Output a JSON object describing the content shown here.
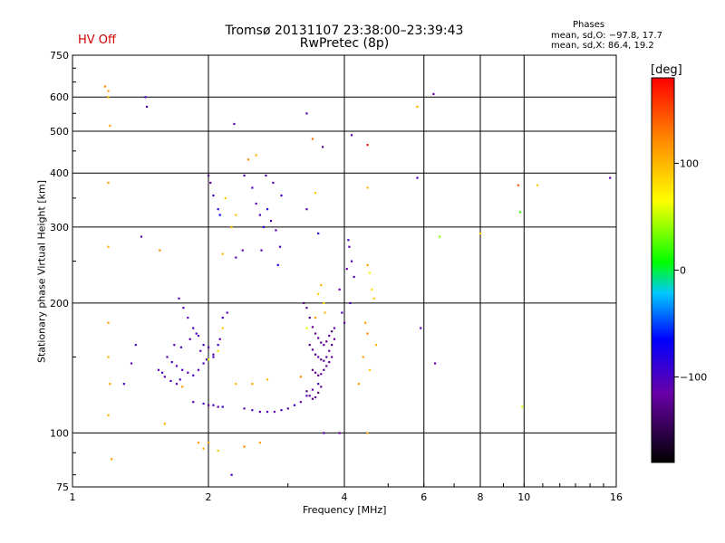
{
  "status_label": "HV Off",
  "title_line1": "Tromsø 20131107 23:38:00–23:39:43",
  "title_line2": "RwPretec (8p)",
  "phases_header": "Phases",
  "stats_line1": "mean, sd,O: −97.8, 17.7",
  "stats_line2": "mean, sd,X:  86.4, 19.2",
  "colors": {
    "status": "#d00000",
    "grid": "#000000"
  },
  "chart_data": {
    "type": "scatter",
    "xlabel": "Frequency [MHz]",
    "ylabel": "Stationary phase Virtual Height [km]",
    "xscale": "log",
    "yscale": "log",
    "xlim": [
      1,
      16
    ],
    "ylim": [
      75,
      750
    ],
    "xticks": [
      1,
      2,
      4,
      6,
      8,
      10,
      16
    ],
    "yticks": [
      75,
      100,
      200,
      300,
      400,
      500,
      600,
      750
    ],
    "grid": true,
    "colorbar": {
      "label": "[deg]",
      "range": [
        -180,
        180
      ],
      "ticks": [
        100,
        0,
        -100
      ]
    },
    "points": [
      [
        1.18,
        635,
        120
      ],
      [
        1.2,
        620,
        110
      ],
      [
        1.2,
        600,
        100
      ],
      [
        1.21,
        515,
        110
      ],
      [
        1.45,
        600,
        -100
      ],
      [
        1.46,
        570,
        -100
      ],
      [
        2.28,
        520,
        -110
      ],
      [
        3.3,
        550,
        -110
      ],
      [
        3.4,
        480,
        130
      ],
      [
        3.58,
        460,
        -120
      ],
      [
        4.15,
        490,
        -110
      ],
      [
        4.5,
        465,
        170
      ],
      [
        4.5,
        370,
        100
      ],
      [
        5.8,
        570,
        100
      ],
      [
        6.3,
        610,
        -110
      ],
      [
        9.7,
        375,
        140
      ],
      [
        10.7,
        375,
        90
      ],
      [
        15.5,
        390,
        -110
      ],
      [
        1.2,
        380,
        110
      ],
      [
        1.2,
        270,
        100
      ],
      [
        1.42,
        285,
        -110
      ],
      [
        1.56,
        265,
        120
      ],
      [
        1.38,
        160,
        -100
      ],
      [
        1.35,
        145,
        -110
      ],
      [
        1.2,
        180,
        110
      ],
      [
        1.2,
        150,
        100
      ],
      [
        1.21,
        130,
        110
      ],
      [
        1.2,
        110,
        100
      ],
      [
        1.22,
        87,
        110
      ],
      [
        1.3,
        130,
        -100
      ],
      [
        2.0,
        395,
        -120
      ],
      [
        2.02,
        380,
        -110
      ],
      [
        2.05,
        355,
        -100
      ],
      [
        2.1,
        330,
        -90
      ],
      [
        2.12,
        320,
        -70
      ],
      [
        2.18,
        350,
        90
      ],
      [
        2.5,
        370,
        -100
      ],
      [
        2.55,
        340,
        -110
      ],
      [
        2.6,
        320,
        -100
      ],
      [
        2.65,
        300,
        -90
      ],
      [
        2.7,
        330,
        -80
      ],
      [
        2.75,
        310,
        -100
      ],
      [
        2.82,
        295,
        -110
      ],
      [
        2.9,
        355,
        -100
      ],
      [
        2.78,
        380,
        -110
      ],
      [
        2.68,
        395,
        -100
      ],
      [
        2.45,
        430,
        120
      ],
      [
        2.55,
        440,
        100
      ],
      [
        2.88,
        270,
        -100
      ],
      [
        2.85,
        245,
        -90
      ],
      [
        2.62,
        265,
        -110
      ],
      [
        3.3,
        330,
        -110
      ],
      [
        3.45,
        360,
        90
      ],
      [
        3.5,
        290,
        -90
      ],
      [
        2.38,
        265,
        -110
      ],
      [
        2.25,
        300,
        100
      ],
      [
        2.3,
        320,
        90
      ],
      [
        2.15,
        260,
        100
      ],
      [
        2.4,
        395,
        -100
      ],
      [
        2.3,
        255,
        -110
      ],
      [
        1.72,
        205,
        -110
      ],
      [
        1.76,
        195,
        -100
      ],
      [
        1.8,
        185,
        -110
      ],
      [
        1.85,
        175,
        -100
      ],
      [
        1.9,
        168,
        -110
      ],
      [
        1.95,
        160,
        -100
      ],
      [
        2.0,
        158,
        -110
      ],
      [
        2.05,
        150,
        -100
      ],
      [
        2.1,
        155,
        80
      ],
      [
        2.12,
        165,
        -110
      ],
      [
        2.15,
        185,
        -100
      ],
      [
        2.2,
        190,
        -110
      ],
      [
        1.62,
        150,
        -110
      ],
      [
        1.66,
        146,
        -100
      ],
      [
        1.7,
        143,
        -110
      ],
      [
        1.75,
        140,
        -100
      ],
      [
        1.8,
        138,
        -110
      ],
      [
        1.85,
        136,
        -100
      ],
      [
        1.9,
        140,
        -110
      ],
      [
        1.95,
        145,
        -100
      ],
      [
        2.0,
        148,
        60
      ],
      [
        2.05,
        152,
        -110
      ],
      [
        2.1,
        160,
        -100
      ],
      [
        2.15,
        175,
        90
      ],
      [
        1.68,
        160,
        -110
      ],
      [
        1.74,
        158,
        -100
      ],
      [
        1.82,
        165,
        -110
      ],
      [
        1.88,
        170,
        -100
      ],
      [
        1.92,
        155,
        -110
      ],
      [
        1.98,
        148,
        -100
      ],
      [
        1.55,
        140,
        -110
      ],
      [
        1.58,
        138,
        -100
      ],
      [
        1.6,
        135,
        -110
      ],
      [
        1.65,
        132,
        -100
      ],
      [
        1.7,
        130,
        -110
      ],
      [
        1.73,
        133,
        -100
      ],
      [
        1.85,
        118,
        -110
      ],
      [
        1.95,
        117,
        -100
      ],
      [
        2.0,
        116,
        -110
      ],
      [
        2.05,
        116,
        -100
      ],
      [
        2.1,
        115,
        -110
      ],
      [
        2.15,
        115,
        -100
      ],
      [
        2.4,
        114,
        -110
      ],
      [
        2.5,
        113,
        -100
      ],
      [
        2.6,
        112,
        -110
      ],
      [
        2.7,
        112,
        -100
      ],
      [
        2.8,
        112,
        -110
      ],
      [
        2.9,
        113,
        -100
      ],
      [
        3.0,
        114,
        -110
      ],
      [
        3.1,
        116,
        -100
      ],
      [
        3.2,
        118,
        -110
      ],
      [
        3.3,
        122,
        -100
      ],
      [
        3.4,
        126,
        -110
      ],
      [
        3.5,
        130,
        -100
      ],
      [
        3.25,
        200,
        -130
      ],
      [
        3.3,
        195,
        -120
      ],
      [
        3.35,
        185,
        -130
      ],
      [
        3.4,
        176,
        -120
      ],
      [
        3.45,
        170,
        -130
      ],
      [
        3.5,
        166,
        -120
      ],
      [
        3.55,
        162,
        -130
      ],
      [
        3.6,
        160,
        -120
      ],
      [
        3.65,
        163,
        -130
      ],
      [
        3.7,
        168,
        -120
      ],
      [
        3.75,
        172,
        -130
      ],
      [
        3.8,
        175,
        -120
      ],
      [
        3.35,
        160,
        -130
      ],
      [
        3.4,
        156,
        -120
      ],
      [
        3.45,
        152,
        -130
      ],
      [
        3.5,
        150,
        -120
      ],
      [
        3.55,
        148,
        -130
      ],
      [
        3.6,
        147,
        -120
      ],
      [
        3.65,
        150,
        -130
      ],
      [
        3.7,
        155,
        -120
      ],
      [
        3.75,
        160,
        -130
      ],
      [
        3.8,
        165,
        -120
      ],
      [
        3.4,
        140,
        -130
      ],
      [
        3.45,
        138,
        -120
      ],
      [
        3.5,
        136,
        -130
      ],
      [
        3.55,
        137,
        -120
      ],
      [
        3.6,
        140,
        -130
      ],
      [
        3.65,
        143,
        -120
      ],
      [
        3.7,
        146,
        -130
      ],
      [
        3.75,
        150,
        -120
      ],
      [
        3.3,
        125,
        -130
      ],
      [
        3.35,
        122,
        -120
      ],
      [
        3.4,
        120,
        -130
      ],
      [
        3.45,
        121,
        -120
      ],
      [
        3.5,
        124,
        -130
      ],
      [
        3.55,
        128,
        -120
      ],
      [
        3.5,
        210,
        90
      ],
      [
        3.55,
        220,
        100
      ],
      [
        3.6,
        200,
        80
      ],
      [
        3.45,
        185,
        110
      ],
      [
        3.62,
        190,
        95
      ],
      [
        3.3,
        175,
        60
      ],
      [
        4.05,
        240,
        -110
      ],
      [
        4.08,
        280,
        -100
      ],
      [
        4.1,
        270,
        -110
      ],
      [
        4.15,
        250,
        -100
      ],
      [
        4.2,
        230,
        -110
      ],
      [
        4.12,
        200,
        -100
      ],
      [
        4.5,
        245,
        110
      ],
      [
        4.55,
        235,
        70
      ],
      [
        4.6,
        215,
        80
      ],
      [
        4.65,
        205,
        90
      ],
      [
        4.45,
        180,
        110
      ],
      [
        4.5,
        170,
        120
      ],
      [
        4.7,
        160,
        100
      ],
      [
        4.4,
        150,
        110
      ],
      [
        4.55,
        140,
        90
      ],
      [
        3.9,
        215,
        -110
      ],
      [
        3.95,
        190,
        -100
      ],
      [
        4.0,
        180,
        -110
      ],
      [
        5.8,
        390,
        -100
      ],
      [
        5.9,
        175,
        -110
      ],
      [
        6.35,
        145,
        -110
      ],
      [
        6.5,
        285,
        40
      ],
      [
        8.0,
        290,
        90
      ],
      [
        9.8,
        325,
        20
      ],
      [
        9.9,
        115,
        60
      ],
      [
        2.25,
        80,
        -100
      ],
      [
        1.9,
        95,
        110
      ],
      [
        1.95,
        92,
        100
      ],
      [
        2.1,
        91,
        90
      ],
      [
        2.4,
        93,
        120
      ],
      [
        2.6,
        95,
        110
      ],
      [
        3.6,
        100,
        -110
      ],
      [
        3.9,
        100,
        -120
      ],
      [
        2.3,
        130,
        100
      ],
      [
        2.5,
        130,
        110
      ],
      [
        2.7,
        133,
        100
      ],
      [
        1.75,
        128,
        110
      ],
      [
        1.6,
        105,
        100
      ],
      [
        2.0,
        95,
        110
      ],
      [
        4.5,
        100,
        100
      ],
      [
        4.3,
        130,
        110
      ],
      [
        3.2,
        135,
        120
      ]
    ]
  }
}
